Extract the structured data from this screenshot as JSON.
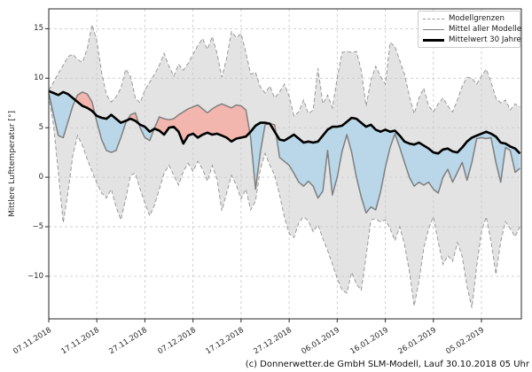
{
  "figure": {
    "ylabel": "Mittlere Lufttemperatur [°]",
    "caption": "(c) Donnerwetter.de GmbH SLM-Modell, Lauf 30.10.2018 05 Uhr"
  },
  "chart_data": {
    "type": "line",
    "title": "",
    "xlabel": "",
    "ylabel": "Mittlere Lufttemperatur [°]",
    "grid": true,
    "legend_position": "upper right",
    "legend": [
      {
        "label": "Modellgrenzen",
        "style": "dashed-gray"
      },
      {
        "label": "Mittel aller Modelle",
        "style": "solid-gray"
      },
      {
        "label": "Mittelwert 30 Jahre",
        "style": "solid-black-thick"
      }
    ],
    "x_tick_labels": [
      "07.11.2018",
      "17.11.2018",
      "27.11.2018",
      "07.12.2018",
      "17.12.2018",
      "27.12.2018",
      "06.01.2019",
      "16.01.2019",
      "26.01.2019",
      "05.02.2019"
    ],
    "x_tick_interval_days": 10,
    "x_unit": "Tage ab 07.11.2018 (ein Wert pro Tag)",
    "x_range_days": [
      0,
      98.3
    ],
    "ylim": [
      -14.3,
      17.0
    ],
    "y_ticks": [
      15,
      10,
      5,
      0,
      -5,
      -10
    ],
    "y_tick_labels": [
      "15",
      "10",
      "5",
      "0",
      "−5",
      "−10"
    ],
    "fills": {
      "band": "grau: Bereich zwischen oberer und unterer Modellgrenze",
      "warm": "rot: Mittel aller Modelle über Mittelwert 30 Jahre",
      "cold": "blau: Mittel aller Modelle unter Mittelwert 30 Jahre"
    },
    "colors": {
      "band": "#e3e3e3",
      "bound_line": "#999999",
      "cold_fill": "#b9d7e8",
      "warm_fill": "#f3b6ae",
      "mean_line": "#7f7f7f",
      "mean30_line": "#000000",
      "grid": "#cccccc",
      "axis": "#262626"
    },
    "series": [
      {
        "name": "Modellgrenze oben",
        "values": [
          8.8,
          9.6,
          10.5,
          11.3,
          12.2,
          12.4,
          11.9,
          11.6,
          13.0,
          15.4,
          13.8,
          10.6,
          8.3,
          7.6,
          8.1,
          9.0,
          10.9,
          10.2,
          8.0,
          7.5,
          8.8,
          9.6,
          10.4,
          11.3,
          12.5,
          11.2,
          10.2,
          11.4,
          10.8,
          11.5,
          12.4,
          13.3,
          14.0,
          12.9,
          14.2,
          12.5,
          10.1,
          12.0,
          14.7,
          14.1,
          14.5,
          12.6,
          10.4,
          10.6,
          9.1,
          8.5,
          9.2,
          8.0,
          8.6,
          9.4,
          8.2,
          6.2,
          6.6,
          7.8,
          6.4,
          6.8,
          11.0,
          7.4,
          8.3,
          7.0,
          10.0,
          12.6,
          12.7,
          12.6,
          12.7,
          10.8,
          7.2,
          9.8,
          11.2,
          10.2,
          9.4,
          13.6,
          13.2,
          11.8,
          10.4,
          8.2,
          6.4,
          8.0,
          9.0,
          7.2,
          6.6,
          7.4,
          8.0,
          7.2,
          6.6,
          7.8,
          9.2,
          10.1,
          10.0,
          9.4,
          10.2,
          10.9,
          9.6,
          8.0,
          7.5,
          7.8,
          6.8,
          7.4,
          7.1
        ]
      },
      {
        "name": "Modellgrenze unten",
        "values": [
          8.3,
          5.2,
          0.5,
          -4.6,
          -1.5,
          2.2,
          4.2,
          3.2,
          1.8,
          0.6,
          -0.6,
          -1.6,
          -2.1,
          -1.2,
          -3.0,
          -4.3,
          -2.2,
          0.2,
          0.4,
          -1.2,
          -2.6,
          -3.9,
          -2.8,
          -1.2,
          0.4,
          1.2,
          0.2,
          -0.8,
          0.6,
          1.4,
          0.6,
          1.6,
          0.8,
          -0.4,
          1.2,
          -0.2,
          -3.4,
          -1.6,
          0.2,
          -0.8,
          -2.2,
          -1.2,
          -3.3,
          -2.4,
          0.8,
          2.4,
          1.2,
          0.2,
          -1.8,
          -4.0,
          -5.7,
          -6.1,
          -4.6,
          -4.0,
          -4.4,
          -5.5,
          -4.8,
          -6.2,
          -7.4,
          -8.8,
          -10.2,
          -11.4,
          -11.7,
          -9.6,
          -10.8,
          -11.4,
          -8.0,
          -4.3,
          -4.2,
          -4.5,
          -4.3,
          -5.2,
          -6.4,
          -5.0,
          -6.8,
          -9.5,
          -13.0,
          -10.5,
          -7.2,
          -5.2,
          -4.0,
          -6.5,
          -8.8,
          -7.9,
          -8.5,
          -6.6,
          -8.0,
          -11.0,
          -13.2,
          -9.0,
          -5.5,
          -4.0,
          -6.5,
          -9.8,
          -6.5,
          -4.5,
          -5.2,
          -6.0,
          -5.0
        ]
      },
      {
        "name": "Mittel aller Modelle",
        "values": [
          8.5,
          6.3,
          4.2,
          4.0,
          5.6,
          7.2,
          8.3,
          8.6,
          8.4,
          7.6,
          5.6,
          3.8,
          2.7,
          2.5,
          2.7,
          4.0,
          5.5,
          6.3,
          6.5,
          5.0,
          4.0,
          3.7,
          5.0,
          6.1,
          5.9,
          5.8,
          5.9,
          6.3,
          6.6,
          6.9,
          7.1,
          7.3,
          6.9,
          6.5,
          6.9,
          7.2,
          7.4,
          7.2,
          7.0,
          7.3,
          7.2,
          6.8,
          4.0,
          -1.2,
          2.5,
          5.3,
          5.4,
          5.3,
          2.0,
          1.6,
          1.2,
          0.4,
          -0.5,
          -0.9,
          -0.4,
          -0.9,
          -2.1,
          -1.4,
          2.7,
          -1.8,
          0.0,
          2.6,
          4.3,
          2.5,
          0.0,
          -2.0,
          -3.6,
          -3.0,
          -3.3,
          -1.5,
          1.0,
          3.0,
          4.4,
          3.0,
          1.5,
          0.0,
          -0.9,
          -0.5,
          -0.8,
          -0.5,
          -1.2,
          -1.6,
          0.0,
          0.8,
          -0.5,
          0.5,
          1.5,
          -0.3,
          1.5,
          3.9,
          4.0,
          3.9,
          4.0,
          1.5,
          -0.5,
          3.0,
          2.7,
          0.5,
          0.9
        ]
      },
      {
        "name": "Mittelwert 30 Jahre",
        "values": [
          8.7,
          8.5,
          8.3,
          8.6,
          8.4,
          8.0,
          7.6,
          7.2,
          7.0,
          6.7,
          6.2,
          6.0,
          5.9,
          6.3,
          5.9,
          5.5,
          5.7,
          5.9,
          5.7,
          5.3,
          5.1,
          4.6,
          4.9,
          4.7,
          4.3,
          5.0,
          5.1,
          4.6,
          3.4,
          4.2,
          4.4,
          4.0,
          4.3,
          4.5,
          4.3,
          4.4,
          4.2,
          4.0,
          3.6,
          3.9,
          4.0,
          4.1,
          4.6,
          5.2,
          5.5,
          5.5,
          5.4,
          4.6,
          3.8,
          3.7,
          4.0,
          4.3,
          3.9,
          3.5,
          3.6,
          3.5,
          3.6,
          4.2,
          4.8,
          5.1,
          5.1,
          5.2,
          5.6,
          6.0,
          5.9,
          5.5,
          5.1,
          5.3,
          4.8,
          4.6,
          4.8,
          4.6,
          4.7,
          4.2,
          3.6,
          3.4,
          3.3,
          3.5,
          3.2,
          2.9,
          2.5,
          2.4,
          2.8,
          2.9,
          2.6,
          2.5,
          3.0,
          3.6,
          4.0,
          4.2,
          4.4,
          4.6,
          4.4,
          4.1,
          3.5,
          3.4,
          3.1,
          2.9,
          2.4
        ]
      }
    ]
  }
}
